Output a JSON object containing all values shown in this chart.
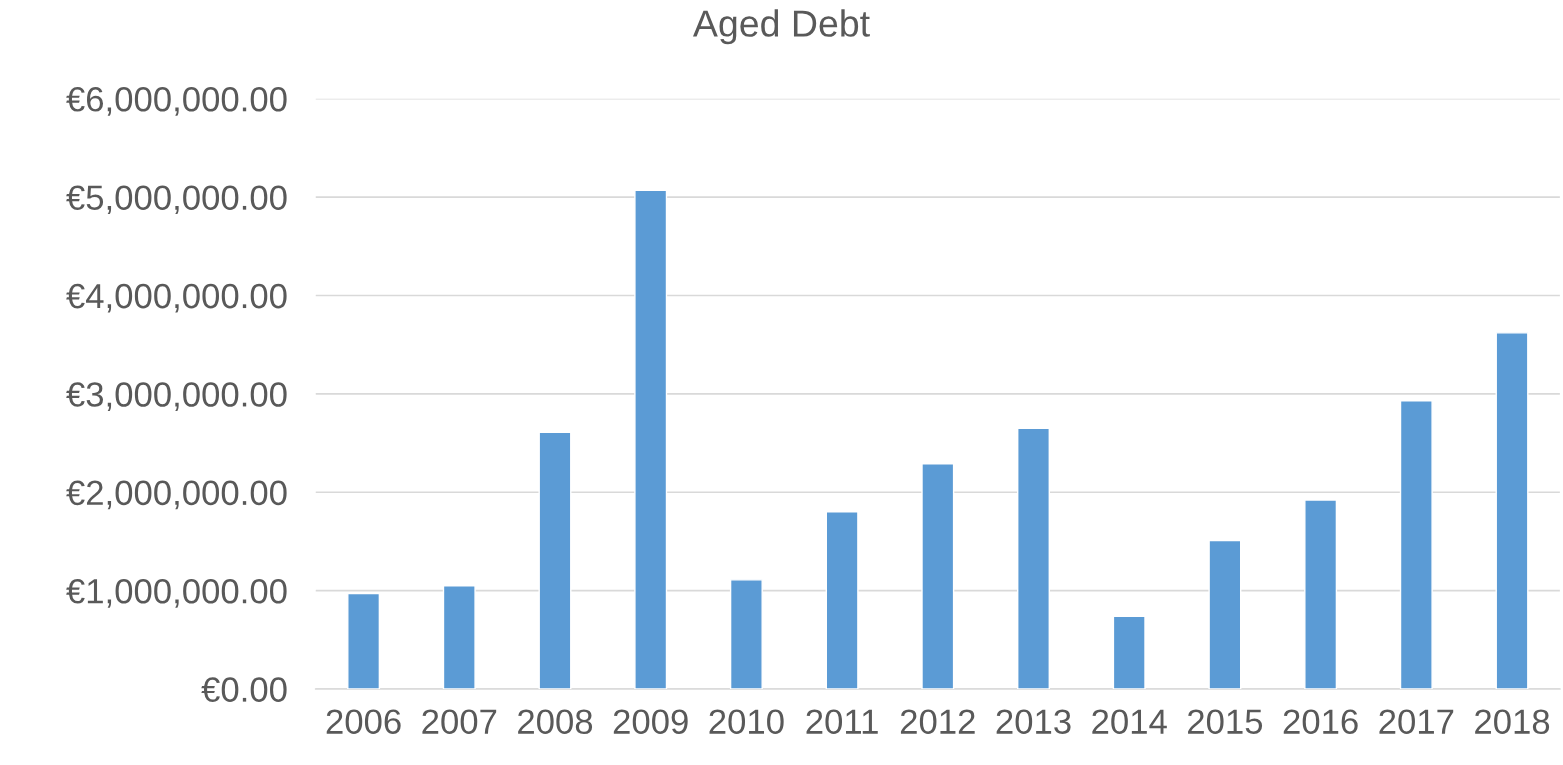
{
  "chart_data": {
    "type": "bar",
    "title": "Aged Debt",
    "categories": [
      "2006",
      "2007",
      "2008",
      "2009",
      "2010",
      "2011",
      "2012",
      "2013",
      "2014",
      "2015",
      "2016",
      "2017",
      "2018"
    ],
    "values": [
      970000,
      1050000,
      2610000,
      5070000,
      1110000,
      1800000,
      2290000,
      2650000,
      740000,
      1510000,
      1920000,
      2930000,
      3620000
    ],
    "color": "#5b9bd5",
    "ylim": [
      0,
      6000000
    ],
    "yticks": [
      {
        "value": 0,
        "label": "€0.00"
      },
      {
        "value": 1000000,
        "label": "€1,000,000.00"
      },
      {
        "value": 2000000,
        "label": "€2,000,000.00"
      },
      {
        "value": 3000000,
        "label": "€3,000,000.00"
      },
      {
        "value": 4000000,
        "label": "€4,000,000.00"
      },
      {
        "value": 5000000,
        "label": "€5,000,000.00"
      },
      {
        "value": 6000000,
        "label": "€6,000,000.00"
      }
    ],
    "grid": "y",
    "legend": false
  }
}
